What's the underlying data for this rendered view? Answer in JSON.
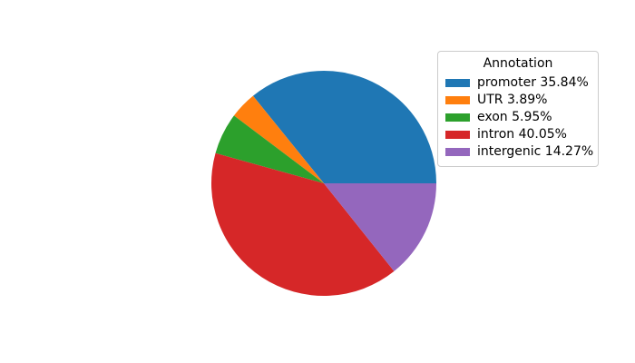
{
  "figure": {
    "background_color": "#ffffff"
  },
  "legend": {
    "title": "Annotation",
    "border_color": "#cccccc",
    "background_color": "#ffffff",
    "items": [
      {
        "label": "promoter 35.84%",
        "color": "#1f77b4"
      },
      {
        "label": "UTR 3.89%",
        "color": "#ff7f0e"
      },
      {
        "label": "exon 5.95%",
        "color": "#2ca02c"
      },
      {
        "label": "intron 40.05%",
        "color": "#d62728"
      },
      {
        "label": "intergenic 14.27%",
        "color": "#9467bd"
      }
    ]
  },
  "chart_data": {
    "type": "pie",
    "title": "",
    "categories": [
      "promoter",
      "UTR",
      "exon",
      "intron",
      "intergenic"
    ],
    "values": [
      35.84,
      3.89,
      5.95,
      40.05,
      14.27
    ],
    "unit": "%",
    "colors": [
      "#1f77b4",
      "#ff7f0e",
      "#2ca02c",
      "#d62728",
      "#9467bd"
    ],
    "start_angle_deg": 0,
    "direction": "counterclockwise",
    "legend_title": "Annotation",
    "legend_position": "upper right",
    "labels_on_slices": false
  }
}
